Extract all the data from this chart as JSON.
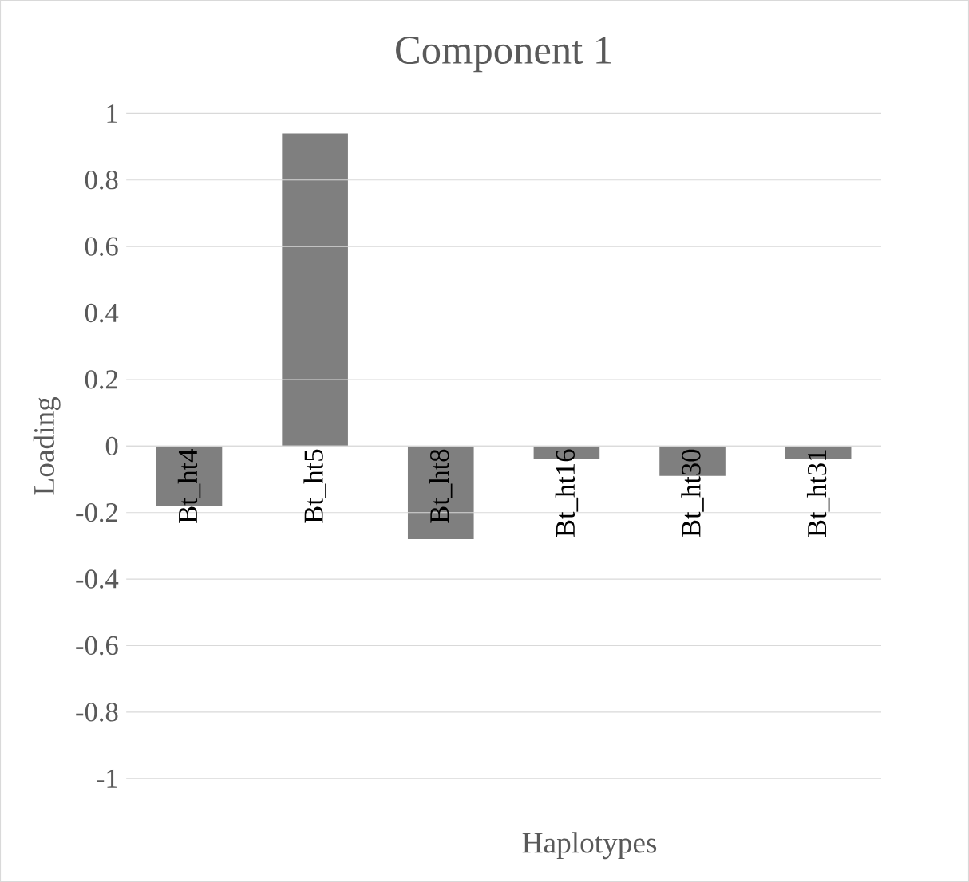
{
  "chart_data": {
    "type": "bar",
    "title": "Component 1",
    "xlabel": "Haplotypes",
    "ylabel": "Loading",
    "categories": [
      "Bt_ht4",
      "Bt_ht5",
      "Bt_ht8",
      "Bt_ht16",
      "Bt_ht30",
      "Bt_ht31"
    ],
    "values": [
      -0.18,
      0.94,
      -0.28,
      -0.04,
      -0.09,
      -0.04
    ],
    "color": "#7f7f7f",
    "ylim": [
      -1,
      1
    ],
    "yticks": [
      -1,
      -0.8,
      -0.6,
      -0.4,
      -0.2,
      0,
      0.2,
      0.4,
      0.6,
      0.8,
      1
    ],
    "grid": "y"
  }
}
